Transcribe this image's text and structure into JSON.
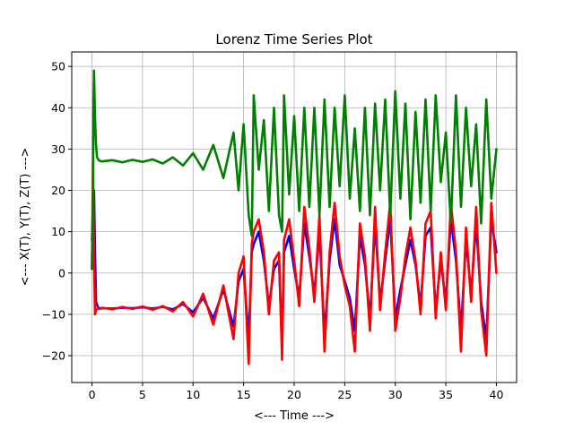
{
  "chart_data": {
    "type": "line",
    "title": "Lorenz Time Series Plot",
    "xlabel": "<--- Time --->",
    "ylabel": "<--- X(T), Y(T), Z(T) --->",
    "xlim": [
      -2.0,
      42.0
    ],
    "ylim": [
      -26.5,
      53.5
    ],
    "x_ticks": [
      0,
      5,
      10,
      15,
      20,
      25,
      30,
      35,
      40
    ],
    "y_ticks": [
      -20,
      -10,
      0,
      10,
      20,
      30,
      40,
      50
    ],
    "x_tick_labels": [
      "0",
      "5",
      "10",
      "15",
      "20",
      "25",
      "30",
      "35",
      "40"
    ],
    "y_tick_labels": [
      "−20",
      "−10",
      "0",
      "10",
      "20",
      "30",
      "40",
      "50"
    ],
    "grid": true,
    "legend": "none",
    "series": [
      {
        "color": "#0000ff",
        "x": [
          0,
          0.1,
          0.2,
          0.3,
          0.4,
          0.6,
          0.8,
          1,
          2,
          3,
          4,
          5,
          6,
          7,
          8,
          9,
          10,
          11,
          12,
          13,
          14,
          14.5,
          15,
          15.5,
          15.8,
          16,
          16.5,
          17,
          17.5,
          18,
          18.5,
          18.8,
          19,
          19.5,
          20,
          20.5,
          21,
          21.5,
          22,
          22.5,
          23,
          23.5,
          24,
          24.5,
          25,
          25.5,
          26,
          26.5,
          27,
          27.5,
          28,
          28.5,
          29,
          29.5,
          30,
          30.5,
          31,
          31.5,
          32,
          32.5,
          33,
          33.5,
          34,
          34.5,
          35,
          35.5,
          36,
          36.5,
          37,
          37.5,
          38,
          38.5,
          39,
          39.5,
          40
        ],
        "y": [
          8,
          15,
          20,
          5,
          -7,
          -8.3,
          -8.6,
          -8.5,
          -8.6,
          -8.4,
          -8.5,
          -8.3,
          -8.6,
          -8.2,
          -8.8,
          -7.5,
          -9.5,
          -6,
          -11,
          -4,
          -13,
          -2,
          1,
          -16,
          5,
          7,
          10,
          3,
          -8,
          1,
          3,
          -18,
          5,
          9,
          1,
          -6,
          12,
          4,
          -5,
          10,
          -15,
          3,
          13,
          2,
          -2,
          -6,
          -14,
          9,
          2,
          -11,
          12,
          -7,
          3,
          13,
          -11,
          -4,
          2,
          8,
          2,
          -8,
          9,
          11,
          -9,
          3,
          -7,
          13,
          3,
          -14,
          8,
          -5,
          12,
          -7,
          -16,
          13,
          5
        ]
      },
      {
        "color": "#ff0000",
        "x": [
          0,
          0.1,
          0.2,
          0.3,
          0.4,
          0.6,
          0.8,
          1,
          2,
          3,
          4,
          5,
          6,
          7,
          8,
          9,
          10,
          11,
          12,
          13,
          14,
          14.5,
          15,
          15.5,
          15.8,
          16,
          16.5,
          17,
          17.5,
          18,
          18.5,
          18.8,
          19,
          19.5,
          20,
          20.5,
          21,
          21.5,
          22,
          22.5,
          23,
          23.5,
          24,
          24.5,
          25,
          25.5,
          26,
          26.5,
          27,
          27.5,
          28,
          28.5,
          29,
          29.5,
          30,
          30.5,
          31,
          31.5,
          32,
          32.5,
          33,
          33.5,
          34,
          34.5,
          35,
          35.5,
          36,
          36.5,
          37,
          37.5,
          38,
          38.5,
          39,
          39.5,
          40
        ],
        "y": [
          1,
          27,
          5,
          -10,
          -9,
          -8.5,
          -8.7,
          -8.4,
          -8.8,
          -8.2,
          -8.7,
          -8.1,
          -8.9,
          -8,
          -9.3,
          -7,
          -10.5,
          -5,
          -12.5,
          -3,
          -16,
          0,
          4,
          -22,
          7,
          10,
          13,
          5,
          -10,
          3,
          5,
          -21,
          8,
          13,
          3,
          -8,
          16,
          6,
          -7,
          14,
          -19,
          5,
          17,
          4,
          -3,
          -8,
          -19,
          12,
          4,
          -14,
          16,
          -9,
          5,
          17,
          -14,
          -6,
          4,
          11,
          3,
          -10,
          12,
          15,
          -11,
          5,
          -9,
          17,
          5,
          -19,
          11,
          -7,
          16,
          -9,
          -20,
          17,
          0
        ]
      },
      {
        "color": "#008000",
        "x": [
          0,
          0.1,
          0.15,
          0.2,
          0.3,
          0.4,
          0.5,
          0.7,
          1,
          2,
          3,
          4,
          5,
          6,
          7,
          8,
          9,
          10,
          11,
          12,
          13,
          14,
          14.5,
          15,
          15.5,
          15.8,
          16,
          16.5,
          17,
          17.5,
          18,
          18.5,
          18.8,
          19,
          19.5,
          20,
          20.5,
          21,
          21.5,
          22,
          22.5,
          23,
          23.5,
          24,
          24.5,
          25,
          25.5,
          26,
          26.5,
          27,
          27.5,
          28,
          28.5,
          29,
          29.5,
          30,
          30.5,
          31,
          31.5,
          32,
          32.5,
          33,
          33.5,
          34,
          34.5,
          35,
          35.5,
          36,
          36.5,
          37,
          37.5,
          38,
          38.5,
          39,
          39.5,
          40
        ],
        "y": [
          1,
          20,
          40,
          49,
          38,
          31,
          28,
          27.2,
          27,
          27.3,
          26.8,
          27.4,
          26.9,
          27.5,
          26.5,
          28,
          26,
          29,
          25,
          31,
          23,
          34,
          20,
          36,
          14,
          9,
          43,
          25,
          37,
          15,
          40,
          14,
          10,
          43,
          19,
          38,
          15,
          40,
          16,
          40,
          14,
          42,
          16,
          40,
          21,
          43,
          18,
          35,
          15,
          40,
          14,
          41,
          20,
          42,
          14,
          44,
          18,
          41,
          13,
          39,
          17,
          42,
          15,
          43,
          22,
          34,
          12,
          43,
          16,
          40,
          21,
          36,
          12,
          42,
          18,
          30
        ]
      }
    ]
  }
}
